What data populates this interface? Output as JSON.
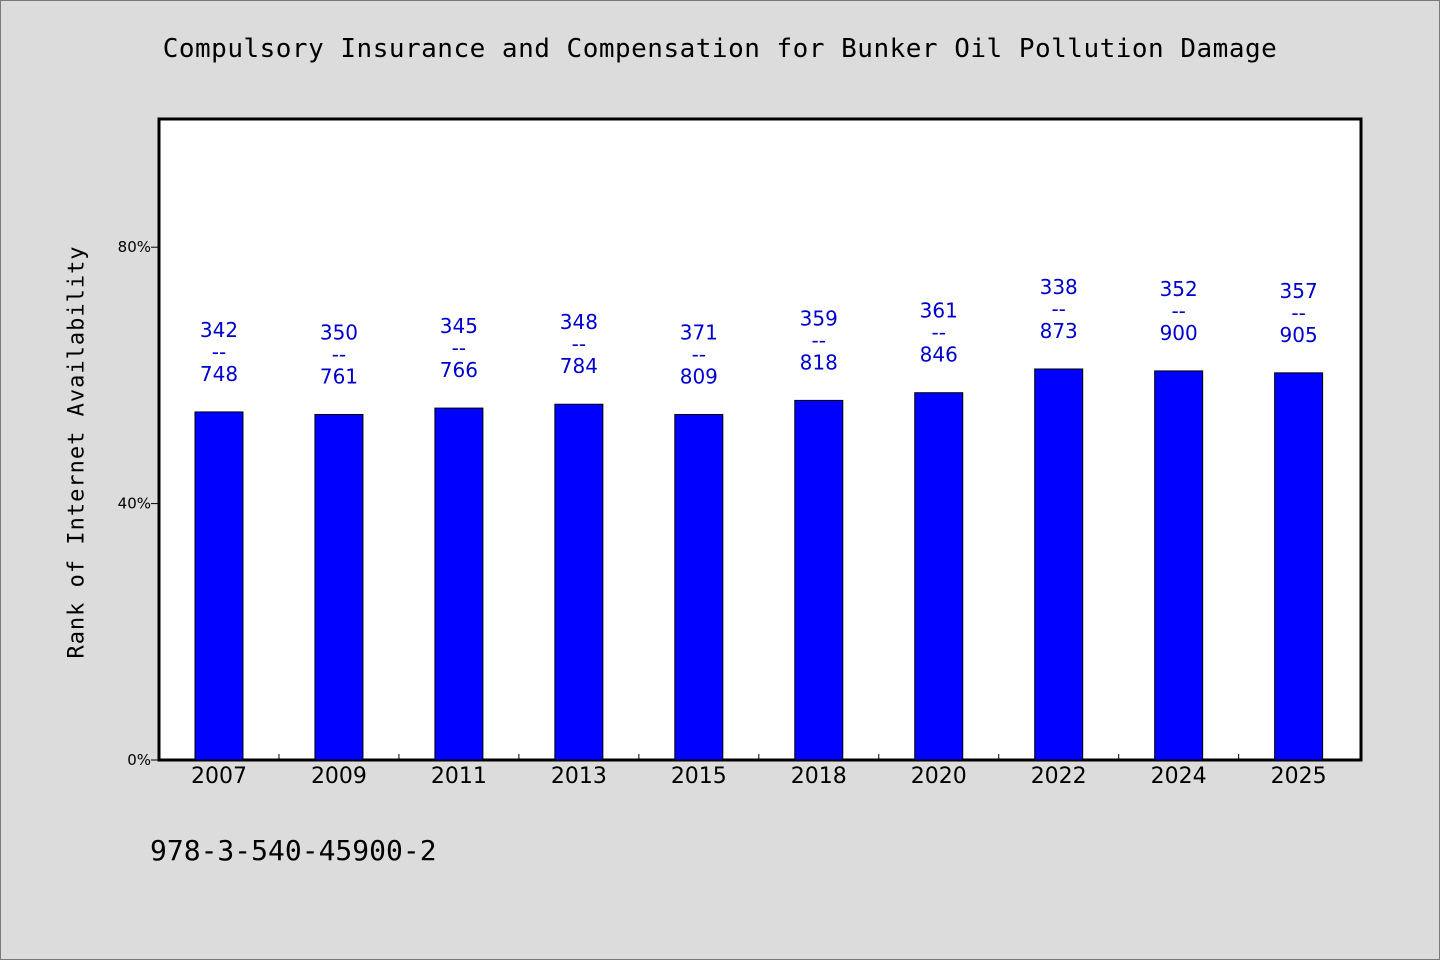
{
  "chart_data": {
    "type": "bar",
    "title": "Compulsory Insurance and Compensation for Bunker Oil Pollution Damage",
    "ylabel": "Rank of Internet Availability",
    "xlabel": "",
    "ylim": [
      0,
      100
    ],
    "yticks": [
      0,
      40,
      80
    ],
    "ytick_labels": [
      "0%",
      "40%",
      "80%"
    ],
    "grid": false,
    "legend": false,
    "bar_color": "#0000ff",
    "label_color": "#0000cc",
    "categories": [
      "2007",
      "2009",
      "2011",
      "2013",
      "2015",
      "2018",
      "2020",
      "2022",
      "2024",
      "2025"
    ],
    "values": [
      54.3,
      53.9,
      54.9,
      55.5,
      53.9,
      56.1,
      57.3,
      61.0,
      60.7,
      60.4
    ],
    "data_labels": [
      [
        "342",
        "--",
        "748"
      ],
      [
        "350",
        "--",
        "761"
      ],
      [
        "345",
        "--",
        "766"
      ],
      [
        "348",
        "--",
        "784"
      ],
      [
        "371",
        "--",
        "809"
      ],
      [
        "359",
        "--",
        "818"
      ],
      [
        "361",
        "--",
        "846"
      ],
      [
        "338",
        "--",
        "873"
      ],
      [
        "352",
        "--",
        "900"
      ],
      [
        "357",
        "--",
        "905"
      ]
    ]
  },
  "footer": {
    "code": "978-3-540-45900-2"
  }
}
